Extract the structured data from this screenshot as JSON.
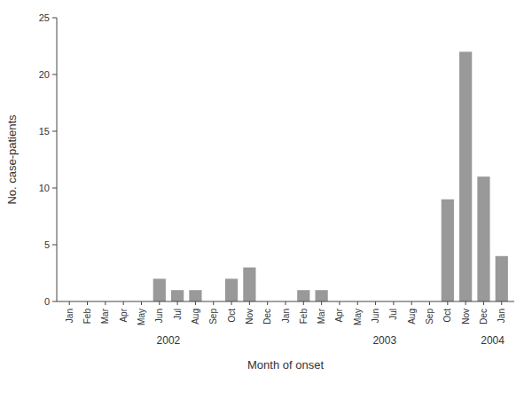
{
  "chart_data": {
    "type": "bar",
    "categories": [
      "Jan",
      "Feb",
      "Mar",
      "Apr",
      "May",
      "Jun",
      "Jul",
      "Aug",
      "Sep",
      "Oct",
      "Nov",
      "Dec",
      "Jan",
      "Feb",
      "Mar",
      "Apr",
      "May",
      "Jun",
      "Jul",
      "Aug",
      "Sep",
      "Oct",
      "Nov",
      "Dec",
      "Jan"
    ],
    "values": [
      0,
      0,
      0,
      0,
      0,
      2,
      1,
      1,
      0,
      2,
      3,
      0,
      0,
      1,
      1,
      0,
      0,
      0,
      0,
      0,
      0,
      9,
      22,
      11,
      4
    ],
    "color": "#999999",
    "x_label": "Month of onset",
    "y_label": "No. case-patients",
    "ylim": [
      0,
      25
    ],
    "yticks": [
      0,
      5,
      10,
      15,
      20,
      25
    ],
    "annotations": [
      {
        "text": "2002",
        "x": 5.5
      },
      {
        "text": "2003",
        "x": 17.5
      },
      {
        "text": "2004",
        "x": 23.5
      }
    ],
    "grid": false
  }
}
